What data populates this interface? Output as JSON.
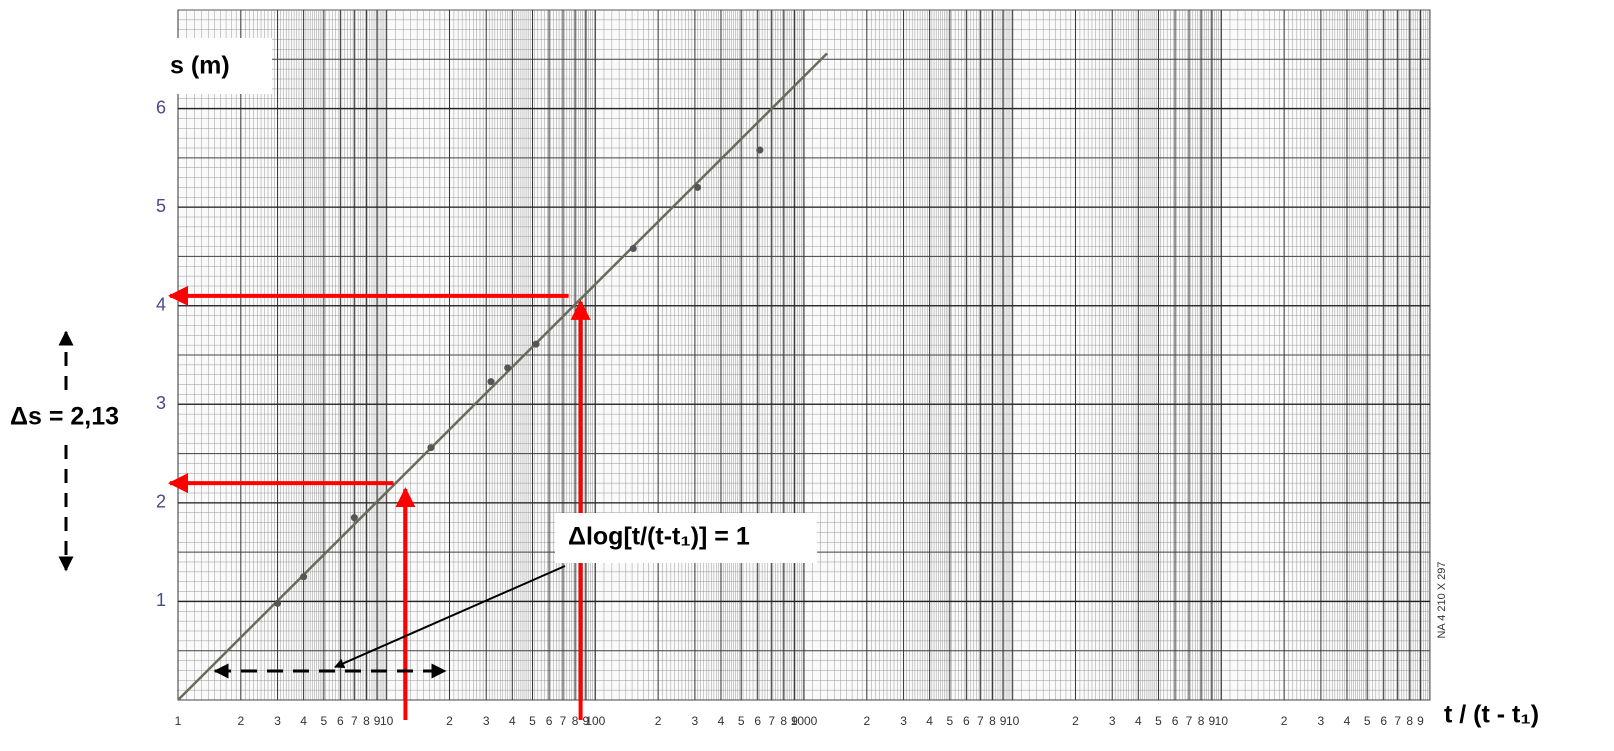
{
  "chart_data": {
    "type": "scatter",
    "y_label": "s (m)",
    "x_label": "t / (t - t₁)",
    "log_x": true,
    "grid": true,
    "xlim": [
      1,
      1000000
    ],
    "ylim": [
      0,
      7
    ],
    "xticks": [
      1,
      2,
      3,
      4,
      5,
      6,
      7,
      8,
      9,
      10,
      {
        "value": 20,
        "label": "2"
      },
      {
        "value": 30,
        "label": "3"
      },
      {
        "value": 40,
        "label": "4"
      },
      {
        "value": 50,
        "label": "5"
      },
      {
        "value": 60,
        "label": "6"
      },
      {
        "value": 70,
        "label": "7"
      },
      {
        "value": 80,
        "label": "8"
      },
      {
        "value": 90,
        "label": "9"
      },
      100,
      {
        "value": 200,
        "label": "2"
      },
      {
        "value": 300,
        "label": "3"
      },
      {
        "value": 400,
        "label": "4"
      },
      {
        "value": 500,
        "label": "5"
      },
      {
        "value": 600,
        "label": "6"
      },
      {
        "value": 700,
        "label": "7"
      },
      {
        "value": 800,
        "label": "8"
      },
      {
        "value": 900,
        "label": "9"
      },
      1000,
      {
        "value": 2000,
        "label": "2"
      },
      {
        "value": 3000,
        "label": "3"
      },
      {
        "value": 4000,
        "label": "4"
      },
      {
        "value": 5000,
        "label": "5"
      },
      {
        "value": 6000,
        "label": "6"
      },
      {
        "value": 7000,
        "label": "7"
      },
      {
        "value": 8000,
        "label": "8"
      },
      {
        "value": 9000,
        "label": "9"
      },
      {
        "value": 10000,
        "label": "10"
      },
      {
        "value": 20000,
        "label": "2"
      },
      {
        "value": 30000,
        "label": "3"
      },
      {
        "value": 40000,
        "label": "4"
      },
      {
        "value": 50000,
        "label": "5"
      },
      {
        "value": 60000,
        "label": "6"
      },
      {
        "value": 70000,
        "label": "7"
      },
      {
        "value": 80000,
        "label": "8"
      },
      {
        "value": 90000,
        "label": "9"
      },
      {
        "value": 100000,
        "label": "10"
      },
      {
        "value": 200000,
        "label": "2"
      },
      {
        "value": 300000,
        "label": "3"
      },
      {
        "value": 400000,
        "label": "4"
      },
      {
        "value": 500000,
        "label": "5"
      },
      {
        "value": 600000,
        "label": "6"
      },
      {
        "value": 700000,
        "label": "7"
      },
      {
        "value": 800000,
        "label": "8"
      },
      {
        "value": 900000,
        "label": "9"
      }
    ],
    "yticks": [
      1,
      2,
      3,
      4,
      5,
      6
    ],
    "series": [
      {
        "color": "#555555",
        "x": [
          3,
          4,
          7,
          16.3,
          31.6,
          38,
          52,
          152,
          309,
          615
        ],
        "values": [
          0.98,
          1.25,
          1.85,
          2.56,
          3.23,
          3.37,
          3.61,
          4.58,
          5.2,
          5.58
        ]
      }
    ],
    "fit_line": {
      "color": "#6b6b5a",
      "x": [
        1,
        1290
      ],
      "values": [
        0,
        6.56
      ]
    },
    "guides": {
      "color": "#ff0000",
      "x": [
        12.3,
        85
      ],
      "values": [
        2.2,
        4.1
      ]
    },
    "annotations": {
      "delta_s": "Δs = 2,13",
      "delta_log": "Δlog[t/(t-t₁)] = 1"
    },
    "paper_label": "NA 4   210 X 297"
  }
}
